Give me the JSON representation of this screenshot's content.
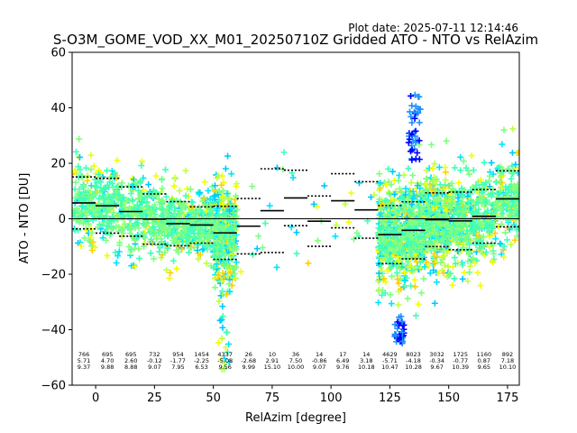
{
  "chart_data": {
    "type": "scatter",
    "title": "S-O3M_GOME_VOD_XX_M01_20250710Z Gridded ATO - NTO vs RelAzim",
    "plot_date": "Plot date: 2025-07-11 12:14:46",
    "xlabel": "RelAzim [degree]",
    "ylabel": "ATO - NTO [DU]",
    "xlim": [
      -10,
      180
    ],
    "ylim": [
      -60,
      60
    ],
    "xticks": [
      0,
      25,
      50,
      75,
      100,
      125,
      150,
      175
    ],
    "yticks": [
      -60,
      -40,
      -20,
      0,
      20,
      40,
      60
    ],
    "zero_line": 0,
    "bins": [
      {
        "x": -5,
        "count": "766",
        "mean": "5.71",
        "std": "9.37"
      },
      {
        "x": 5,
        "count": "695",
        "mean": "4.70",
        "std": "9.88"
      },
      {
        "x": 15,
        "count": "695",
        "mean": "2.60",
        "std": "8.88"
      },
      {
        "x": 25,
        "count": "732",
        "mean": "-0.12",
        "std": "9.07"
      },
      {
        "x": 35,
        "count": "954",
        "mean": "-1.77",
        "std": "7.95"
      },
      {
        "x": 45,
        "count": "1454",
        "mean": "-2.25",
        "std": "6.53"
      },
      {
        "x": 55,
        "count": "4337",
        "mean": "-5.08",
        "std": "9.56"
      },
      {
        "x": 65,
        "count": "26",
        "mean": "-2.68",
        "std": "9.99"
      },
      {
        "x": 75,
        "count": "10",
        "mean": "2.91",
        "std": "15.10"
      },
      {
        "x": 85,
        "count": "36",
        "mean": "7.50",
        "std": "10.00"
      },
      {
        "x": 95,
        "count": "14",
        "mean": "-0.86",
        "std": "9.07"
      },
      {
        "x": 105,
        "count": "17",
        "mean": "6.49",
        "std": "9.76"
      },
      {
        "x": 115,
        "count": "14",
        "mean": "3.18",
        "std": "10.18"
      },
      {
        "x": 125,
        "count": "4629",
        "mean": "-5.71",
        "std": "10.47"
      },
      {
        "x": 135,
        "count": "8023",
        "mean": "-4.18",
        "std": "10.28"
      },
      {
        "x": 145,
        "count": "3032",
        "mean": "-0.34",
        "std": "9.67"
      },
      {
        "x": 155,
        "count": "1725",
        "mean": "-0.77",
        "std": "10.39"
      },
      {
        "x": 165,
        "count": "1160",
        "mean": "0.87",
        "std": "9.65"
      },
      {
        "x": 175,
        "count": "892",
        "mean": "7.18",
        "std": "10.10"
      }
    ],
    "point_colors": [
      "#00e5ff",
      "#00c8ff",
      "#40ffb8",
      "#80ff80",
      "#c0ff40",
      "#f0ff00",
      "#ffd000",
      "#1e90ff",
      "#0000ff"
    ],
    "mean_color": "#000000"
  }
}
